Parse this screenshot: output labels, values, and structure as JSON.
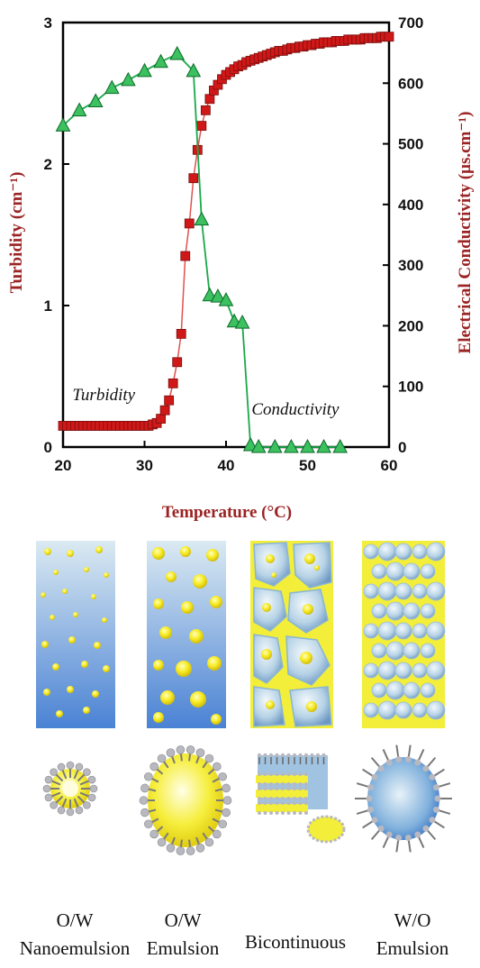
{
  "chart_data": {
    "type": "scatter",
    "xlabel": "Temperature (°C)",
    "ylabel": "Turbidity (cm⁻¹)",
    "y2label": "Electrical Conductivity  (µs.cm⁻¹)",
    "xlim": [
      20,
      60
    ],
    "ylim": [
      0,
      3
    ],
    "y2lim": [
      0,
      700
    ],
    "xticks": [
      "20",
      "30",
      "40",
      "50",
      "60"
    ],
    "yticks": [
      "0",
      "1",
      "2",
      "3"
    ],
    "y2ticks": [
      "0",
      "100",
      "200",
      "300",
      "400",
      "500",
      "600",
      "700"
    ],
    "grid": false,
    "series": [
      {
        "name": "Turbidity",
        "axis": "left",
        "color": "#d01818",
        "marker": "square",
        "x": [
          20,
          20.5,
          21,
          21.5,
          22,
          22.5,
          23,
          23.5,
          24,
          24.5,
          25,
          25.5,
          26,
          26.5,
          27,
          27.5,
          28,
          28.5,
          29,
          29.5,
          30,
          30.5,
          31,
          31.5,
          32,
          32.5,
          33,
          33.5,
          34,
          34.5,
          35,
          35.5,
          36,
          36.5,
          37,
          37.5,
          38,
          38.5,
          39,
          39.5,
          40,
          40.5,
          41,
          41.5,
          42,
          42.5,
          43,
          43.5,
          44,
          44.5,
          45,
          45.5,
          46,
          46.5,
          47,
          47.5,
          48,
          48.5,
          49,
          49.5,
          50,
          50.5,
          51,
          51.5,
          52,
          52.5,
          53,
          53.5,
          54,
          54.5,
          55,
          55.5,
          56,
          56.5,
          57,
          57.5,
          58,
          58.5,
          59,
          59.5,
          60
        ],
        "y": [
          0.15,
          0.15,
          0.15,
          0.15,
          0.15,
          0.15,
          0.15,
          0.15,
          0.15,
          0.15,
          0.15,
          0.15,
          0.15,
          0.15,
          0.15,
          0.15,
          0.15,
          0.15,
          0.15,
          0.15,
          0.15,
          0.15,
          0.16,
          0.17,
          0.2,
          0.26,
          0.33,
          0.45,
          0.6,
          0.8,
          1.35,
          1.58,
          1.9,
          2.1,
          2.27,
          2.38,
          2.46,
          2.52,
          2.56,
          2.6,
          2.63,
          2.65,
          2.67,
          2.69,
          2.7,
          2.72,
          2.73,
          2.74,
          2.75,
          2.76,
          2.77,
          2.78,
          2.79,
          2.8,
          2.8,
          2.81,
          2.82,
          2.82,
          2.83,
          2.83,
          2.84,
          2.84,
          2.85,
          2.85,
          2.86,
          2.86,
          2.86,
          2.87,
          2.87,
          2.87,
          2.88,
          2.88,
          2.88,
          2.88,
          2.89,
          2.89,
          2.89,
          2.89,
          2.9,
          2.9,
          2.9
        ]
      },
      {
        "name": "Conductivity",
        "axis": "right",
        "color": "#1aa848",
        "marker": "triangle",
        "x": [
          20,
          22,
          24,
          26,
          28,
          30,
          32,
          34,
          36,
          37,
          38,
          39,
          40,
          41,
          42,
          43,
          44,
          46,
          48,
          50,
          52,
          54
        ],
        "y": [
          530,
          555,
          570,
          592,
          605,
          620,
          635,
          648,
          620,
          375,
          250,
          248,
          242,
          207,
          205,
          3,
          0,
          0,
          0,
          0,
          0,
          0
        ]
      }
    ],
    "annotations": [
      {
        "text": "Turbidity",
        "x": 25,
        "y": 0.33
      },
      {
        "text": "Conductivity",
        "x": 48.5,
        "y": 0.23
      }
    ]
  },
  "panels": {
    "captions": [
      {
        "line1": "O/W",
        "line2": "Nanoemulsion"
      },
      {
        "line1": "O/W",
        "line2": "Emulsion"
      },
      {
        "line1": "Bicontinuous",
        "line2": ""
      },
      {
        "line1": "W/O",
        "line2": "Emulsion"
      }
    ],
    "colors": {
      "water_blue": "#4f86d6",
      "water_light": "#d6e8f2",
      "oil_yellow": "#f2ee3a",
      "droplet_yellow": "#f4e21a",
      "head_grey": "#b8b8c0"
    }
  }
}
